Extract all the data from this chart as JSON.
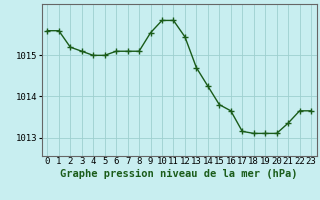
{
  "x": [
    0,
    1,
    2,
    3,
    4,
    5,
    6,
    7,
    8,
    9,
    10,
    11,
    12,
    13,
    14,
    15,
    16,
    17,
    18,
    19,
    20,
    21,
    22,
    23
  ],
  "y": [
    1015.6,
    1015.6,
    1015.2,
    1015.1,
    1015.0,
    1015.0,
    1015.1,
    1015.1,
    1015.1,
    1015.55,
    1015.85,
    1015.85,
    1015.45,
    1014.7,
    1014.25,
    1013.8,
    1013.65,
    1013.15,
    1013.1,
    1013.1,
    1013.1,
    1013.35,
    1013.65,
    1013.65
  ],
  "line_color": "#1a5c1a",
  "marker_color": "#1a5c1a",
  "bg_color": "#c8eef0",
  "plot_bg_color": "#c8eef0",
  "grid_color": "#9ecfcf",
  "xlabel": "Graphe pression niveau de la mer (hPa)",
  "xlabel_color": "#1a5c1a",
  "ytick_labels": [
    "1013",
    "1014",
    "1015"
  ],
  "yticks": [
    1013,
    1014,
    1015
  ],
  "ylim": [
    1012.55,
    1016.25
  ],
  "xlim": [
    -0.5,
    23.5
  ],
  "xtick_labels": [
    "0",
    "1",
    "2",
    "3",
    "4",
    "5",
    "6",
    "7",
    "8",
    "9",
    "10",
    "11",
    "12",
    "13",
    "14",
    "15",
    "16",
    "17",
    "18",
    "19",
    "20",
    "21",
    "22",
    "23"
  ],
  "xlabel_fontsize": 7.5,
  "tick_fontsize": 6.5,
  "line_width": 1.0,
  "marker_size": 4
}
